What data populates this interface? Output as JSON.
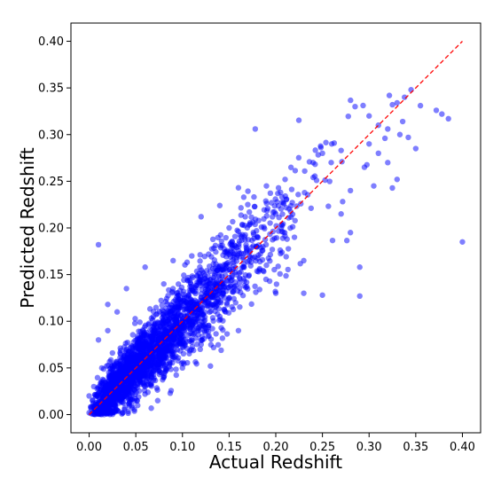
{
  "chart_data": {
    "type": "scatter",
    "xlabel": "Actual Redshift",
    "ylabel": "Predicted Redshift",
    "xlim": [
      -0.0195,
      0.4195
    ],
    "ylim": [
      -0.0195,
      0.4195
    ],
    "xticks": [
      0.0,
      0.05,
      0.1,
      0.15,
      0.2,
      0.25,
      0.3,
      0.35,
      0.4
    ],
    "yticks": [
      0.0,
      0.05,
      0.1,
      0.15,
      0.2,
      0.25,
      0.3,
      0.35,
      0.4
    ],
    "xtick_labels": [
      "0.00",
      "0.05",
      "0.10",
      "0.15",
      "0.20",
      "0.25",
      "0.30",
      "0.35",
      "0.40"
    ],
    "ytick_labels": [
      "0.00",
      "0.05",
      "0.10",
      "0.15",
      "0.20",
      "0.25",
      "0.30",
      "0.35",
      "0.40"
    ],
    "grid": false,
    "marker_color": "#0000ff",
    "marker_alpha": 0.5,
    "reference_line": {
      "x": [
        0.0,
        0.4
      ],
      "y": [
        0.0,
        0.4
      ],
      "color": "#ff0000",
      "style": "dashed"
    },
    "series": [
      {
        "points": [
          [
            0.01,
            0.182
          ],
          [
            0.178,
            0.306
          ],
          [
            0.4,
            0.185
          ],
          [
            0.385,
            0.317
          ],
          [
            0.378,
            0.322
          ],
          [
            0.372,
            0.326
          ],
          [
            0.355,
            0.331
          ],
          [
            0.345,
            0.348
          ],
          [
            0.338,
            0.34
          ],
          [
            0.33,
            0.334
          ],
          [
            0.336,
            0.314
          ],
          [
            0.342,
            0.297
          ],
          [
            0.35,
            0.285
          ],
          [
            0.32,
            0.306
          ],
          [
            0.31,
            0.31
          ],
          [
            0.325,
            0.332
          ],
          [
            0.317,
            0.296
          ],
          [
            0.333,
            0.3
          ],
          [
            0.29,
            0.127
          ],
          [
            0.29,
            0.158
          ],
          [
            0.25,
            0.128
          ],
          [
            0.33,
            0.252
          ],
          [
            0.285,
            0.33
          ],
          [
            0.3,
            0.32
          ],
          [
            0.26,
            0.29
          ],
          [
            0.27,
            0.283
          ],
          [
            0.2,
            0.215
          ],
          [
            0.16,
            0.243
          ],
          [
            0.14,
            0.224
          ],
          [
            0.12,
            0.212
          ],
          [
            0.23,
            0.13
          ],
          [
            0.28,
            0.195
          ],
          [
            0.305,
            0.245
          ],
          [
            0.32,
            0.27
          ],
          [
            0.3,
            0.29
          ],
          [
            0.06,
            0.158
          ],
          [
            0.04,
            0.135
          ],
          [
            0.02,
            0.118
          ],
          [
            0.01,
            0.08
          ],
          [
            0.02,
            0.09
          ],
          [
            0.03,
            0.11
          ],
          [
            0.025,
            0.066
          ],
          [
            0.22,
            0.19
          ],
          [
            0.15,
            0.125
          ],
          [
            0.1,
            0.1
          ],
          [
            0.11,
            0.17
          ],
          [
            0.08,
            0.14
          ],
          [
            0.09,
            0.165
          ],
          [
            0.15,
            0.2
          ],
          [
            0.17,
            0.225
          ],
          [
            0.19,
            0.245
          ],
          [
            0.21,
            0.252
          ],
          [
            0.24,
            0.27
          ],
          [
            0.25,
            0.28
          ],
          [
            0.19,
            0.16
          ],
          [
            0.14,
            0.105
          ],
          [
            0.12,
            0.075
          ],
          [
            0.1,
            0.05
          ],
          [
            0.08,
            0.04
          ],
          [
            0.06,
            0.03
          ],
          [
            0.13,
            0.052
          ],
          [
            0.16,
            0.09
          ],
          [
            0.2,
            0.13
          ],
          [
            0.23,
            0.165
          ],
          [
            0.27,
            0.215
          ],
          [
            0.28,
            0.24
          ],
          [
            0.295,
            0.265
          ],
          [
            0.31,
            0.28
          ],
          [
            0.0,
            0.02
          ],
          [
            0.005,
            0.03
          ],
          [
            0.0,
            0.002
          ],
          [
            0.002,
            0.008
          ],
          [
            0.012,
            0.004
          ],
          [
            0.03,
            0.025
          ],
          [
            0.05,
            0.045
          ],
          [
            0.04,
            0.07
          ],
          [
            0.07,
            0.09
          ],
          [
            0.09,
            0.08
          ],
          [
            0.13,
            0.14
          ],
          [
            0.18,
            0.19
          ]
        ]
      }
    ]
  }
}
